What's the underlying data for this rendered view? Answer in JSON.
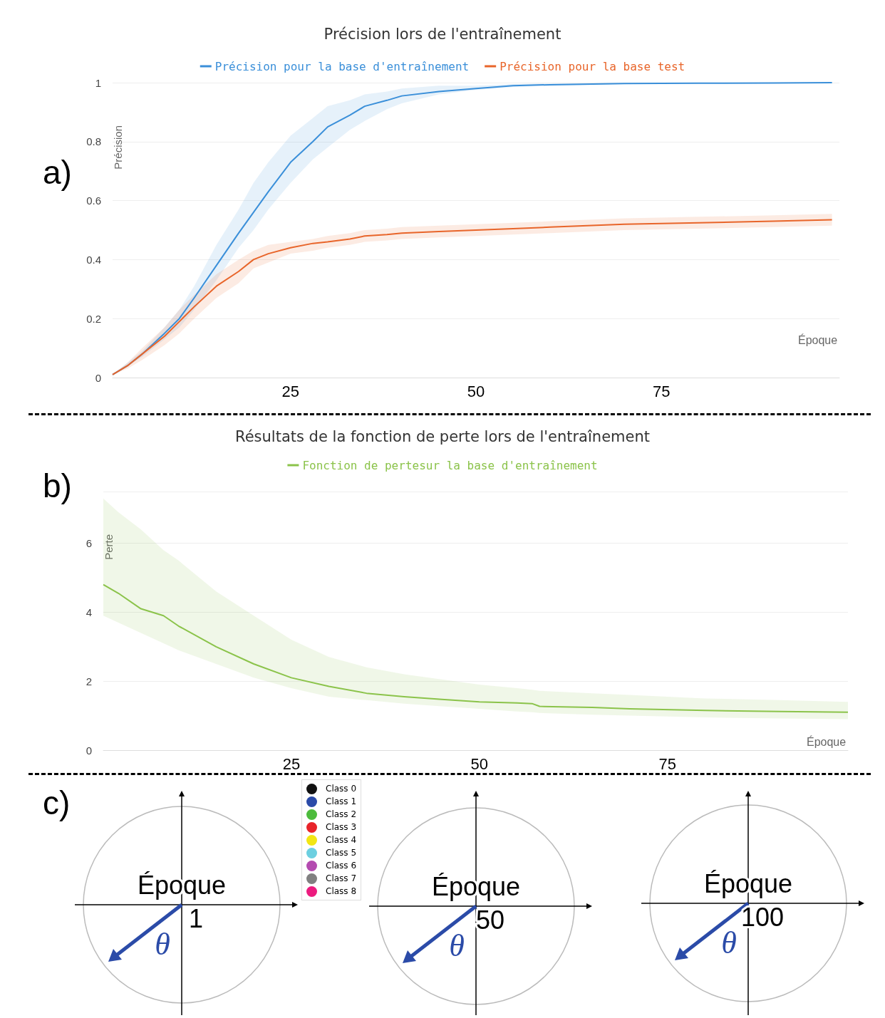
{
  "chart_data": [
    {
      "type": "line",
      "title": "Précision lors de l'entraînement",
      "xlabel": "Époque",
      "ylabel": "Précision",
      "annotations": [
        "a)"
      ],
      "x": [
        1,
        3,
        5,
        8,
        10,
        12,
        15,
        18,
        20,
        22,
        25,
        28,
        30,
        33,
        35,
        38,
        40,
        45,
        50,
        55,
        60,
        70,
        80,
        90,
        98
      ],
      "xlim": [
        1,
        99
      ],
      "xticks": [
        25,
        50,
        75
      ],
      "ylim": [
        0,
        1
      ],
      "yticks": [
        0,
        0.2,
        0.4,
        0.6,
        0.8,
        1
      ],
      "grid": "y",
      "legend": "top",
      "marker": "none",
      "line_style": "solid",
      "series": [
        {
          "name": "Précision pour la base d'entraînement",
          "color": "#3a8fd9",
          "values": [
            0.01,
            0.04,
            0.08,
            0.15,
            0.2,
            0.27,
            0.38,
            0.49,
            0.56,
            0.63,
            0.73,
            0.8,
            0.85,
            0.89,
            0.92,
            0.94,
            0.955,
            0.97,
            0.98,
            0.99,
            0.993,
            0.997,
            0.998,
            0.999,
            1.0
          ],
          "lower": [
            0.01,
            0.04,
            0.07,
            0.13,
            0.17,
            0.23,
            0.33,
            0.44,
            0.5,
            0.57,
            0.66,
            0.74,
            0.78,
            0.84,
            0.87,
            0.91,
            0.93,
            0.96,
            0.975,
            0.985,
            0.99,
            0.995,
            0.996,
            0.997,
            0.998
          ],
          "upper": [
            0.01,
            0.05,
            0.09,
            0.17,
            0.23,
            0.31,
            0.45,
            0.57,
            0.66,
            0.73,
            0.82,
            0.88,
            0.92,
            0.94,
            0.96,
            0.97,
            0.98,
            0.99,
            0.99,
            0.995,
            0.997,
            0.999,
            1.0,
            1.0,
            1.0
          ]
        },
        {
          "name": "Précision pour la base test",
          "color": "#e8652a",
          "values": [
            0.01,
            0.04,
            0.08,
            0.14,
            0.19,
            0.24,
            0.31,
            0.36,
            0.4,
            0.42,
            0.44,
            0.455,
            0.46,
            0.47,
            0.48,
            0.485,
            0.49,
            0.495,
            0.5,
            0.505,
            0.51,
            0.52,
            0.525,
            0.53,
            0.535
          ],
          "lower": [
            0.01,
            0.03,
            0.06,
            0.11,
            0.15,
            0.2,
            0.27,
            0.32,
            0.37,
            0.39,
            0.42,
            0.43,
            0.44,
            0.45,
            0.46,
            0.465,
            0.47,
            0.475,
            0.48,
            0.485,
            0.49,
            0.5,
            0.505,
            0.51,
            0.515
          ],
          "upper": [
            0.01,
            0.05,
            0.1,
            0.17,
            0.23,
            0.28,
            0.35,
            0.4,
            0.43,
            0.45,
            0.46,
            0.47,
            0.48,
            0.49,
            0.5,
            0.505,
            0.51,
            0.515,
            0.52,
            0.525,
            0.53,
            0.54,
            0.545,
            0.55,
            0.555
          ]
        }
      ]
    },
    {
      "type": "line",
      "title": "Résultats de la fonction de perte lors de l'entraînement",
      "xlabel": "Époque",
      "ylabel": "Perte",
      "annotations": [
        "b)"
      ],
      "x": [
        0,
        2,
        5,
        8,
        10,
        15,
        20,
        25,
        30,
        35,
        40,
        45,
        50,
        55,
        57,
        58,
        65,
        70,
        80,
        90,
        99
      ],
      "xlim": [
        0,
        99
      ],
      "xticks": [
        25,
        50,
        75
      ],
      "ylim": [
        0,
        7.5
      ],
      "yticks": [
        0,
        2,
        4,
        6
      ],
      "grid": "y",
      "legend": "top",
      "marker": "none",
      "line_style": "solid",
      "series": [
        {
          "name": "Fonction de pertesur la base d'entraînement",
          "color": "#8bc34a",
          "values": [
            4.8,
            4.55,
            4.1,
            3.9,
            3.6,
            3.0,
            2.5,
            2.1,
            1.85,
            1.65,
            1.55,
            1.47,
            1.4,
            1.37,
            1.35,
            1.27,
            1.24,
            1.2,
            1.15,
            1.12,
            1.1
          ],
          "lower": [
            3.9,
            3.7,
            3.4,
            3.1,
            2.9,
            2.5,
            2.1,
            1.8,
            1.55,
            1.45,
            1.35,
            1.27,
            1.2,
            1.12,
            1.1,
            1.08,
            1.03,
            1.0,
            0.95,
            0.92,
            0.9
          ],
          "upper": [
            7.3,
            6.9,
            6.4,
            5.8,
            5.5,
            4.6,
            3.9,
            3.2,
            2.7,
            2.4,
            2.2,
            2.05,
            1.9,
            1.8,
            1.75,
            1.72,
            1.65,
            1.6,
            1.5,
            1.45,
            1.4
          ]
        }
      ]
    },
    {
      "type": "other",
      "annotations": [
        "c)",
        "Époque",
        "1",
        "θ",
        "Époque",
        "50",
        "θ",
        "Époque",
        "100",
        "θ"
      ],
      "categories": [
        "Class 0",
        "Class 1",
        "Class 2",
        "Class 3",
        "Class 4",
        "Class 5",
        "Class 6",
        "Class 7",
        "Class 8"
      ],
      "colors": [
        "#111111",
        "#2b4ba8",
        "#4cbb3c",
        "#e8242a",
        "#f2e614",
        "#6ccfe0",
        "#b44bb0",
        "#808080",
        "#ec1b7f"
      ]
    }
  ]
}
